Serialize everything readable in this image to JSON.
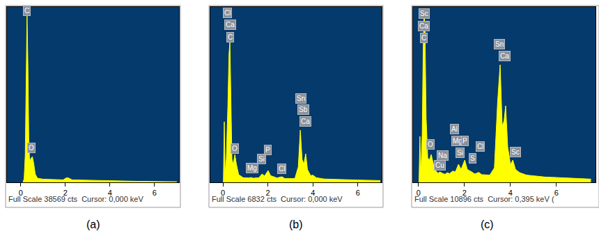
{
  "chart_data": [
    {
      "type": "area",
      "caption": "(a)",
      "footer": "Full Scale 38569 cts  Cursor: 0,000 keV",
      "color": "#ffff00",
      "grid": false,
      "tick_labels": "x",
      "xlim": [
        -0.62,
        7.1
      ],
      "xticks": [
        0,
        2,
        4,
        6
      ],
      "ylim": [
        0,
        38569
      ],
      "x": [
        0.1,
        0.15,
        0.2,
        0.24,
        0.28,
        0.32,
        0.36,
        0.4,
        0.45,
        0.52,
        0.58,
        0.65,
        0.75,
        1.0,
        1.5,
        1.9,
        2.05,
        2.15,
        2.3,
        3,
        4,
        5,
        6,
        7
      ],
      "values": [
        0,
        800,
        6000,
        25000,
        37040,
        26000,
        9000,
        4500,
        5200,
        5660,
        4200,
        1800,
        900,
        700,
        600,
        550,
        1000,
        950,
        550,
        450,
        330,
        250,
        180,
        130
      ],
      "annotations": [
        {
          "text": "C",
          "x": 0.28,
          "y": 37650
        },
        {
          "text": "O",
          "x": 0.47,
          "y": 7500
        }
      ]
    },
    {
      "type": "area",
      "caption": "(b)",
      "footer": "Full Scale 6832 cts  Cursor: 0,000 keV",
      "color": "#ffff00",
      "grid": false,
      "tick_labels": "x",
      "xlim": [
        -0.56,
        7.06
      ],
      "xticks": [
        0,
        2,
        4,
        6
      ],
      "ylim": [
        0,
        6832
      ],
      "x": [
        0.02,
        0.06,
        0.1,
        0.15,
        0.22,
        0.27,
        0.31,
        0.35,
        0.4,
        0.46,
        0.53,
        0.6,
        0.7,
        0.9,
        1.15,
        1.25,
        1.35,
        1.6,
        1.74,
        1.85,
        2.01,
        2.12,
        2.4,
        2.62,
        2.75,
        3.2,
        3.35,
        3.44,
        3.52,
        3.6,
        3.68,
        3.76,
        3.9,
        4.0,
        4.15,
        4.5,
        5,
        6,
        7
      ],
      "values": [
        0,
        2360,
        300,
        900,
        3000,
        5000,
        5476,
        3500,
        900,
        700,
        1084,
        700,
        300,
        180,
        170,
        190,
        160,
        180,
        325,
        250,
        460,
        260,
        170,
        220,
        150,
        150,
        600,
        2033,
        900,
        700,
        1112,
        500,
        260,
        280,
        180,
        130,
        110,
        90,
        70
      ],
      "annotations": [
        {
          "text": "Cl",
          "x": 0.19,
          "y": 6588
        },
        {
          "text": "Ca",
          "x": 0.31,
          "y": 6127
        },
        {
          "text": "C",
          "x": 0.31,
          "y": 5666
        },
        {
          "text": "O",
          "x": 0.53,
          "y": 1328
        },
        {
          "text": "Mg",
          "x": 1.3,
          "y": 569
        },
        {
          "text": "Si",
          "x": 1.73,
          "y": 895
        },
        {
          "text": "P",
          "x": 1.98,
          "y": 1274
        },
        {
          "text": "Cl",
          "x": 2.63,
          "y": 542
        },
        {
          "text": "Sn",
          "x": 3.47,
          "y": 3280
        },
        {
          "text": "Sb",
          "x": 3.59,
          "y": 2820
        },
        {
          "text": "Ca",
          "x": 3.68,
          "y": 2359
        }
      ]
    },
    {
      "type": "area",
      "caption": "(c)",
      "footer": "Full Scale 10896 cts  Cursor: 0,395 keV (",
      "color": "#ffff00",
      "grid": false,
      "tick_labels": "x",
      "xlim": [
        -0.24,
        7.7
      ],
      "xticks": [
        0,
        2,
        4,
        6
      ],
      "ylim": [
        0,
        10896
      ],
      "x": [
        0.02,
        0.06,
        0.1,
        0.16,
        0.2,
        0.24,
        0.28,
        0.33,
        0.4,
        0.48,
        0.55,
        0.62,
        0.7,
        0.85,
        0.93,
        1.04,
        1.15,
        1.25,
        1.35,
        1.49,
        1.6,
        1.74,
        1.85,
        2.01,
        2.12,
        2.31,
        2.45,
        2.62,
        2.75,
        3.1,
        3.3,
        3.44,
        3.55,
        3.64,
        3.72,
        3.79,
        3.88,
        4.0,
        4.1,
        4.22,
        4.4,
        4.7,
        5.0,
        5.5,
        6,
        6.5,
        7,
        7.5
      ],
      "values": [
        0,
        2854,
        500,
        3000,
        8000,
        10680,
        9500,
        4000,
        1500,
        1400,
        1730,
        1300,
        800,
        560,
        650,
        560,
        500,
        600,
        540,
        700,
        650,
        1124,
        800,
        1384,
        800,
        650,
        520,
        620,
        480,
        450,
        900,
        5000,
        7307,
        3500,
        3800,
        4756,
        2200,
        1100,
        1384,
        800,
        600,
        450,
        400,
        330,
        300,
        260,
        230,
        200
      ],
      "annotations": [
        {
          "text": "Sc",
          "x": 0.24,
          "y": 10464
        },
        {
          "text": "Ca",
          "x": 0.24,
          "y": 9728
        },
        {
          "text": "C",
          "x": 0.24,
          "y": 8993
        },
        {
          "text": "O",
          "x": 0.52,
          "y": 2335
        },
        {
          "text": "Cu",
          "x": 0.94,
          "y": 1038
        },
        {
          "text": "Na",
          "x": 1.06,
          "y": 1686
        },
        {
          "text": "Al",
          "x": 1.55,
          "y": 3329
        },
        {
          "text": "Mg",
          "x": 1.7,
          "y": 2551
        },
        {
          "text": "Si",
          "x": 1.82,
          "y": 1859
        },
        {
          "text": "P",
          "x": 2.03,
          "y": 2551
        },
        {
          "text": "S",
          "x": 2.36,
          "y": 1513
        },
        {
          "text": "Cl",
          "x": 2.67,
          "y": 2205
        },
        {
          "text": "Sn",
          "x": 3.52,
          "y": 8561
        },
        {
          "text": "Ca",
          "x": 3.76,
          "y": 7826
        },
        {
          "text": "Sc",
          "x": 4.21,
          "y": 1902
        }
      ]
    }
  ]
}
